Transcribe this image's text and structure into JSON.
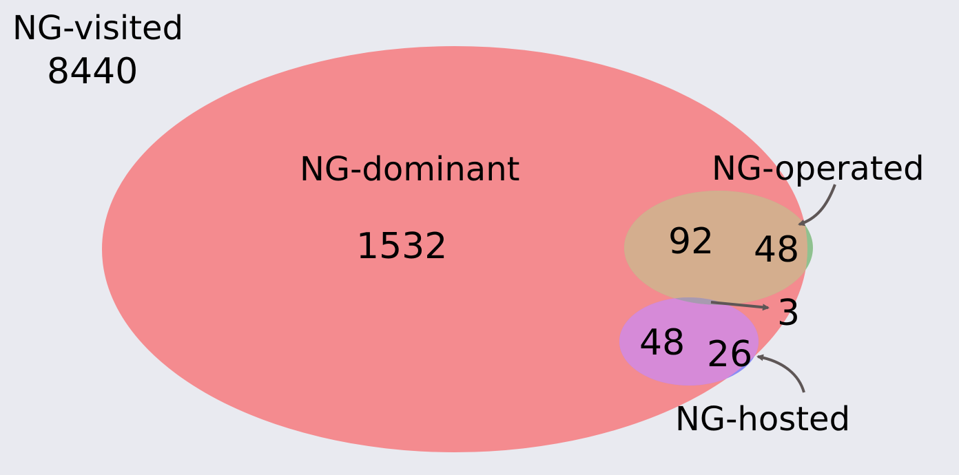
{
  "background": "#e9eaf0",
  "universe": {
    "label": "NG-visited",
    "count": "8440"
  },
  "sets": [
    {
      "key": "dominant",
      "label": "NG-dominant",
      "color": "#f48b8f"
    },
    {
      "key": "operated",
      "label": "NG-operated",
      "color": "#8fc18f"
    },
    {
      "key": "hosted",
      "label": "NG-hosted",
      "color": "#8a8cf5"
    }
  ],
  "regions": {
    "dominant_only": "1532",
    "dominant_operated": "92",
    "operated_only": "48",
    "dominant_operated_hosted": "3",
    "dominant_hosted": "48",
    "hosted_only": "26"
  },
  "colors": {
    "dominant_operated": "#d4ae8e",
    "dominant_hosted": "#d68ad8",
    "arrow": "#5e5656"
  }
}
